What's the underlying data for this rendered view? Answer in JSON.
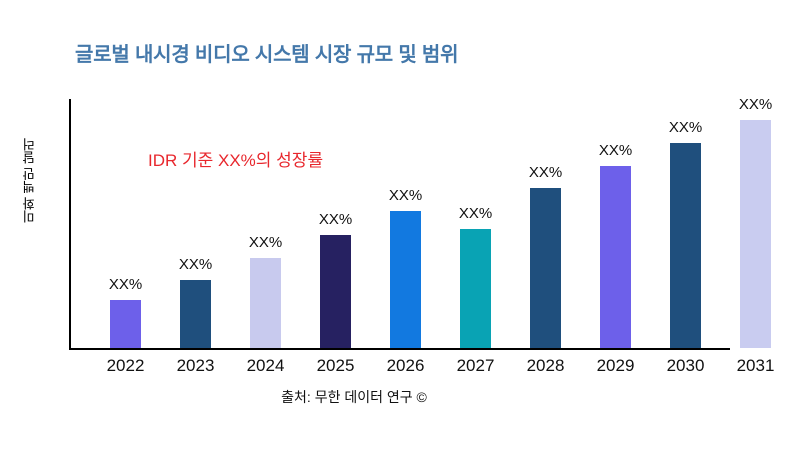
{
  "chart_data": {
    "type": "bar",
    "title": "글로벌 내시경 비디오 시스템 시장 규모 및 범위",
    "ylabel": "미화 백만 달러",
    "annotation": "IDR 기준 XX%의 성장률",
    "source": "출처: 무한 데이터 연구 ©",
    "categories": [
      "2022",
      "2023",
      "2024",
      "2025",
      "2026",
      "2027",
      "2028",
      "2029",
      "2030",
      "2031"
    ],
    "values": [
      21,
      30,
      39.5,
      49.5,
      60,
      52,
      70,
      80,
      90,
      100
    ],
    "ylim": [
      0,
      100
    ],
    "bar_labels": [
      "XX%",
      "XX%",
      "XX%",
      "XX%",
      "XX%",
      "XX%",
      "XX%",
      "XX%",
      "XX%",
      "XX%"
    ],
    "bar_colors": [
      "#6D60EA",
      "#1F4F7D",
      "#C8CAEE",
      "#262161",
      "#1279E0",
      "#09A3B4",
      "#1F4F7D",
      "#6D60EA",
      "#1F4F7D",
      "#C9CCF0"
    ],
    "title_color": "#4478AA",
    "annotation_color": "#E8272D",
    "axis_color": "#000000",
    "legend": "none",
    "grid": "off"
  }
}
